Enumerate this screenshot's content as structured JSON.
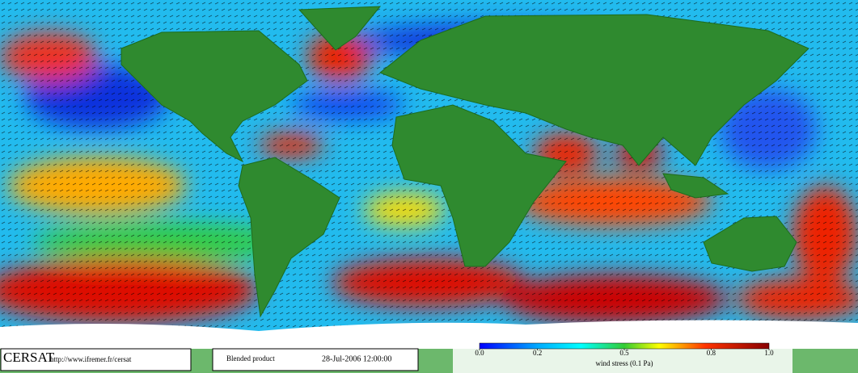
{
  "footer": {
    "logo": "CERSAT",
    "url": "http://www.ifremer.fr/cersat",
    "product": "Blended product",
    "datetime": "28-Jul-2006 12:00:00"
  },
  "colorbar": {
    "label": "wind stress (0.1 Pa)",
    "lim": [
      0,
      1
    ],
    "ticks": [
      {
        "value": 0,
        "label": "0.0"
      },
      0.2,
      0.5,
      0.8,
      {
        "value": 1,
        "label": "1.0"
      }
    ]
  }
}
